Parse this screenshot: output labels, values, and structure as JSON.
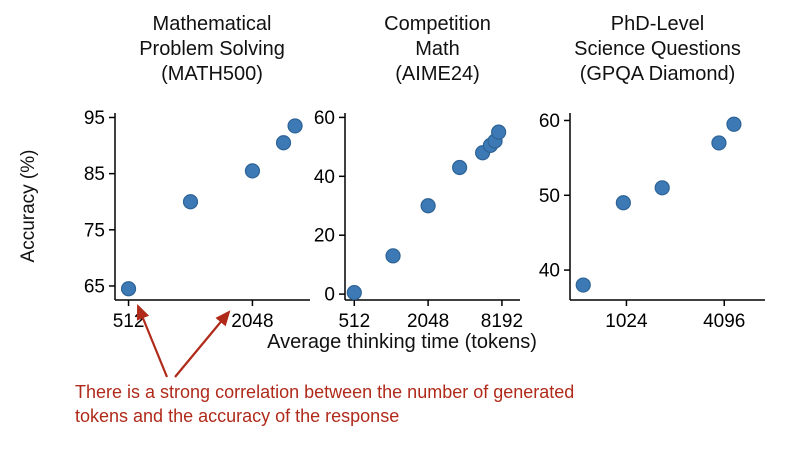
{
  "colors": {
    "point_fill": "#3d7ab5",
    "point_edge": "#2d6396",
    "annotation": "#b02a1a",
    "axis": "#000000"
  },
  "xlabel": "Average thinking time (tokens)",
  "annotation": {
    "lines": [
      "There is a strong correlation between the number of generated",
      "tokens and the accuracy of the response"
    ]
  },
  "chart_data": [
    {
      "type": "scatter",
      "title": "Mathematical Problem Solving (MATH500)",
      "title_lines": [
        "Mathematical",
        "Problem Solving",
        "(MATH500)"
      ],
      "ylabel": "Accuracy (%)",
      "xscale": "log2",
      "xlim": [
        440,
        3900
      ],
      "ylim": [
        62.5,
        95.8
      ],
      "xticks": [
        512,
        2048
      ],
      "yticks": [
        65,
        75,
        85,
        95
      ],
      "x": [
        512,
        1024,
        2048,
        2900,
        3300
      ],
      "y": [
        64.5,
        80,
        85.5,
        90.5,
        93.5
      ],
      "grid": false,
      "legend": "none"
    },
    {
      "type": "scatter",
      "title": "Competition Math (AIME24)",
      "title_lines": [
        "Competition",
        "Math",
        "(AIME24)"
      ],
      "ylabel": "",
      "xscale": "log2",
      "xlim": [
        430,
        11500
      ],
      "ylim": [
        -2,
        61.5
      ],
      "xticks": [
        512,
        2048,
        8192
      ],
      "yticks": [
        0,
        20,
        40,
        60
      ],
      "x": [
        512,
        1060,
        2048,
        3700,
        5700,
        6600,
        7200,
        7700
      ],
      "y": [
        0.5,
        13,
        30,
        43,
        48,
        50.5,
        52,
        55
      ],
      "grid": false,
      "legend": "none"
    },
    {
      "type": "scatter",
      "title": "PhD-Level Science Questions (GPQA Diamond)",
      "title_lines": [
        "PhD-Level",
        "Science Questions",
        "(GPQA Diamond)"
      ],
      "ylabel": "",
      "xscale": "log2",
      "xlim": [
        460,
        7300
      ],
      "ylim": [
        36,
        61
      ],
      "xticks": [
        1024,
        4096
      ],
      "yticks": [
        40,
        50,
        60
      ],
      "x": [
        555,
        980,
        1700,
        3800,
        4700
      ],
      "y": [
        38,
        49,
        51,
        57,
        59.5
      ],
      "grid": false,
      "legend": "none"
    }
  ]
}
